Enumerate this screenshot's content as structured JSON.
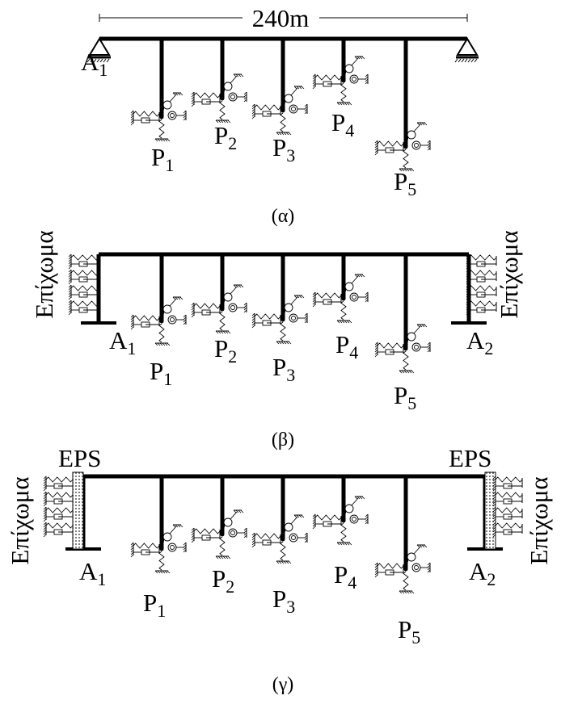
{
  "panels": [
    {
      "dimension": "240m",
      "caption": "(α)",
      "abutments": [
        {
          "letter": "A",
          "index": "1"
        }
      ],
      "piers": [
        {
          "letter": "P",
          "index": "1"
        },
        {
          "letter": "P",
          "index": "2"
        },
        {
          "letter": "P",
          "index": "3"
        },
        {
          "letter": "P",
          "index": "4"
        },
        {
          "letter": "P",
          "index": "5"
        }
      ]
    },
    {
      "caption": "(β)",
      "embankment": [
        "Επίχωμα",
        "Επίχωμα"
      ],
      "abutments": [
        {
          "letter": "A",
          "index": "1"
        },
        {
          "letter": "A",
          "index": "2"
        }
      ],
      "piers": [
        {
          "letter": "P",
          "index": "1"
        },
        {
          "letter": "P",
          "index": "2"
        },
        {
          "letter": "P",
          "index": "3"
        },
        {
          "letter": "P",
          "index": "4"
        },
        {
          "letter": "P",
          "index": "5"
        }
      ]
    },
    {
      "caption": "(γ)",
      "embankment": [
        "Επίχωμα",
        "Επίχωμα"
      ],
      "fill": [
        "EPS",
        "EPS"
      ],
      "abutments": [
        {
          "letter": "A",
          "index": "1"
        },
        {
          "letter": "A",
          "index": "2"
        }
      ],
      "piers": [
        {
          "letter": "P",
          "index": "1"
        },
        {
          "letter": "P",
          "index": "2"
        },
        {
          "letter": "P",
          "index": "3"
        },
        {
          "letter": "P",
          "index": "4"
        },
        {
          "letter": "P",
          "index": "5"
        }
      ]
    }
  ]
}
